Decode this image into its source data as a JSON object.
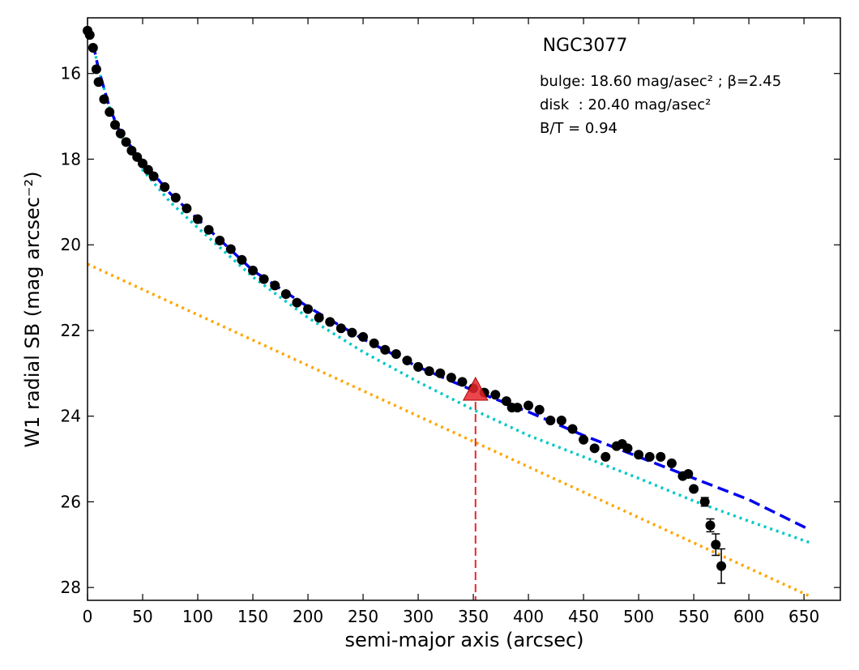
{
  "chart_data": {
    "type": "scatter",
    "title": "NGC3077",
    "annotations": [
      "bulge: 18.60 mag/asec² ; β=2.45",
      "disk  : 20.40 mag/asec²",
      "B/T = 0.94"
    ],
    "x_label": "semi-major axis (arcsec)",
    "y_label": "W1 radial SB (mag arcsec⁻²)",
    "xlim": [
      0,
      683
    ],
    "ylim": [
      28.3,
      14.7
    ],
    "xticks": [
      0,
      50,
      100,
      150,
      200,
      250,
      300,
      350,
      400,
      450,
      500,
      550,
      600,
      650
    ],
    "yticks": [
      16,
      18,
      20,
      22,
      24,
      26,
      28
    ],
    "color": "#000000",
    "x": [
      0,
      2,
      5,
      8,
      10,
      15,
      20,
      25,
      30,
      35,
      40,
      45,
      50,
      55,
      60,
      70,
      80,
      90,
      100,
      110,
      120,
      130,
      140,
      150,
      160,
      170,
      180,
      190,
      200,
      210,
      220,
      230,
      240,
      250,
      260,
      270,
      280,
      290,
      300,
      310,
      320,
      330,
      340,
      350,
      360,
      370,
      380,
      385,
      390,
      400,
      410,
      420,
      430,
      440,
      450,
      460,
      470,
      480,
      485,
      490,
      500,
      510,
      520,
      530,
      540,
      545,
      550,
      560,
      565,
      570,
      575
    ],
    "values": [
      15.0,
      15.1,
      15.4,
      15.9,
      16.2,
      16.6,
      16.9,
      17.2,
      17.4,
      17.6,
      17.8,
      17.95,
      18.1,
      18.25,
      18.4,
      18.65,
      18.9,
      19.15,
      19.4,
      19.65,
      19.9,
      20.1,
      20.35,
      20.6,
      20.8,
      20.95,
      21.15,
      21.35,
      21.5,
      21.7,
      21.8,
      21.95,
      22.05,
      22.15,
      22.3,
      22.45,
      22.55,
      22.7,
      22.85,
      22.95,
      23.0,
      23.1,
      23.2,
      23.35,
      23.45,
      23.5,
      23.65,
      23.8,
      23.8,
      23.75,
      23.85,
      24.1,
      24.1,
      24.3,
      24.55,
      24.75,
      24.95,
      24.7,
      24.65,
      24.75,
      24.9,
      24.95,
      24.95,
      25.1,
      25.4,
      25.35,
      25.7,
      26.0,
      26.55,
      27.0,
      27.5
    ],
    "errors": [
      null,
      null,
      null,
      null,
      null,
      null,
      null,
      null,
      null,
      null,
      null,
      null,
      null,
      null,
      null,
      null,
      null,
      null,
      null,
      null,
      null,
      null,
      null,
      null,
      null,
      null,
      null,
      null,
      null,
      null,
      null,
      null,
      null,
      null,
      null,
      null,
      null,
      null,
      null,
      null,
      null,
      null,
      null,
      null,
      null,
      null,
      null,
      null,
      null,
      null,
      null,
      null,
      null,
      null,
      null,
      null,
      null,
      null,
      null,
      null,
      null,
      null,
      null,
      null,
      null,
      null,
      null,
      0.1,
      0.15,
      0.25,
      0.4
    ],
    "models": [
      {
        "color": "#00c8c8",
        "style": "dotted",
        "x": [
          5,
          10,
          20,
          30,
          50,
          75,
          100,
          150,
          200,
          250,
          300,
          350,
          400,
          450,
          500,
          550,
          600,
          655
        ],
        "values": [
          15.3,
          15.9,
          16.8,
          17.45,
          18.25,
          19.0,
          19.6,
          20.75,
          21.7,
          22.5,
          23.2,
          23.85,
          24.45,
          24.95,
          25.45,
          25.98,
          26.45,
          26.95
        ]
      },
      {
        "color": "#ffa500",
        "style": "dotted",
        "x": [
          0,
          655
        ],
        "values": [
          20.45,
          28.2
        ]
      },
      {
        "color": "#0000ee",
        "style": "dashed",
        "x": [
          5,
          10,
          20,
          30,
          50,
          75,
          100,
          150,
          200,
          250,
          300,
          350,
          400,
          450,
          500,
          550,
          600,
          655
        ],
        "values": [
          15.3,
          15.9,
          16.8,
          17.4,
          18.05,
          18.8,
          19.4,
          20.6,
          21.45,
          22.2,
          22.85,
          23.4,
          23.9,
          24.45,
          24.95,
          25.45,
          25.95,
          26.65
        ]
      }
    ],
    "marker": {
      "x": 352,
      "value": 23.4,
      "color": "#e8262b"
    }
  }
}
